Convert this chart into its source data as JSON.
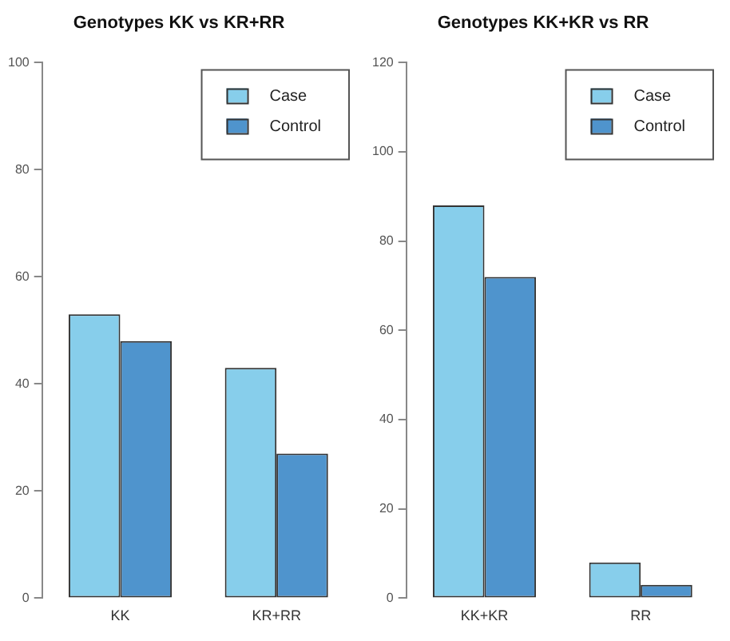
{
  "chart_data": [
    {
      "type": "bar",
      "title": "Genotypes KK vs KR+RR",
      "categories": [
        "KK",
        "KR+RR"
      ],
      "series": [
        {
          "name": "Case",
          "color": "#87ceeb",
          "values": [
            53,
            43
          ]
        },
        {
          "name": "Control",
          "color": "#4f94cd",
          "values": [
            48,
            27
          ]
        }
      ],
      "ylim": [
        0,
        100
      ],
      "yticks": [
        0,
        20,
        40,
        60,
        80,
        100
      ],
      "legend": "top right"
    },
    {
      "type": "bar",
      "title": "Genotypes KK+KR vs RR",
      "categories": [
        "KK+KR",
        "RR"
      ],
      "series": [
        {
          "name": "Case",
          "color": "#87ceeb",
          "values": [
            88,
            8
          ]
        },
        {
          "name": "Control",
          "color": "#4f94cd",
          "values": [
            72,
            3
          ]
        }
      ],
      "ylim": [
        0,
        120
      ],
      "yticks": [
        0,
        20,
        40,
        60,
        80,
        100,
        120
      ],
      "legend": "top right"
    }
  ]
}
